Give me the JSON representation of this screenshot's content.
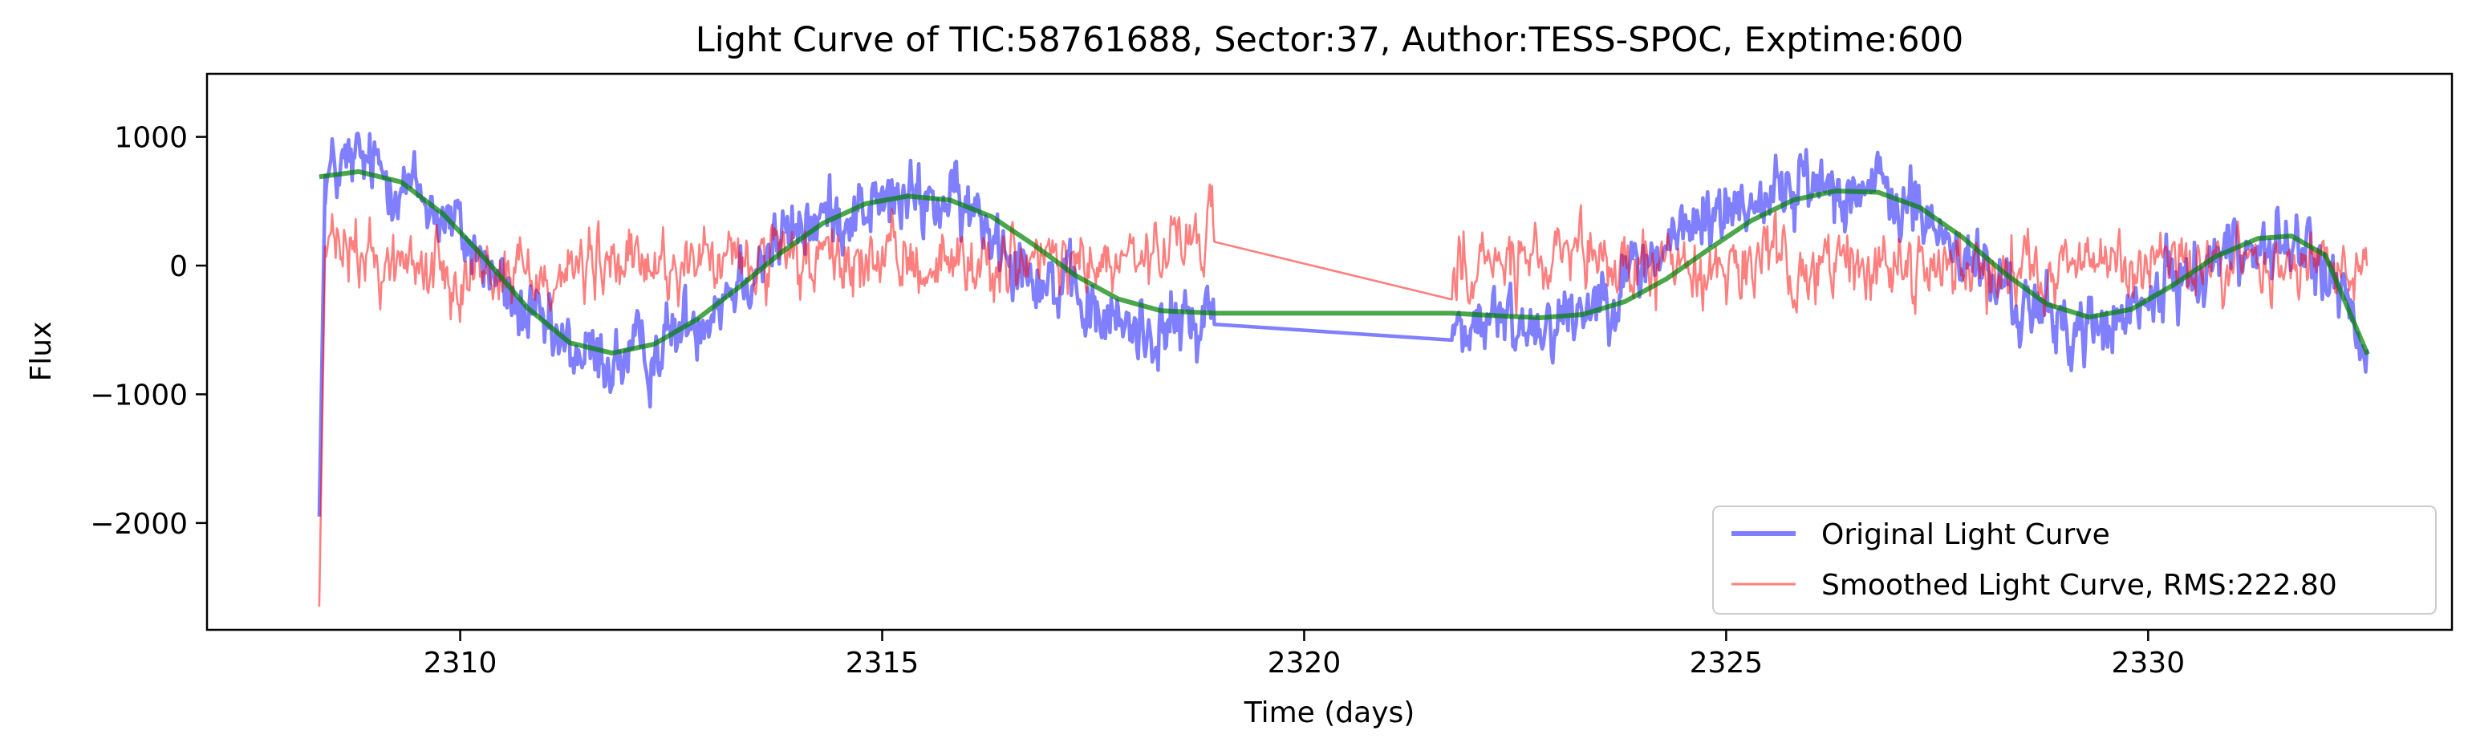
{
  "chart_data": {
    "type": "line",
    "title": "Light Curve of TIC:58761688, Sector:37, Author:TESS-SPOC, Exptime:600",
    "xlabel": "Time (days)",
    "ylabel": "Flux",
    "xlim": [
      2307.0,
      2333.6
    ],
    "ylim": [
      -2830,
      1490
    ],
    "xticks": [
      2310,
      2315,
      2320,
      2325,
      2330
    ],
    "yticks": [
      -2000,
      -1000,
      0,
      1000
    ],
    "ytick_labels": [
      "−2000",
      "−1000",
      "0",
      "1000"
    ],
    "grid": false,
    "legend_position": "lower-right",
    "gap": [
      2318.95,
      2321.75
    ],
    "series": [
      {
        "name": "Original Light Curve",
        "color": "#0000ff",
        "opacity": 0.5,
        "style": "thick",
        "noise_amplitude": 230,
        "points": [
          [
            2308.33,
            -1950
          ],
          [
            2308.4,
            700
          ],
          [
            2308.8,
            800
          ],
          [
            2309.2,
            700
          ],
          [
            2309.7,
            450
          ],
          [
            2310.2,
            100
          ],
          [
            2310.7,
            -350
          ],
          [
            2311.2,
            -650
          ],
          [
            2311.7,
            -750
          ],
          [
            2312.2,
            -700
          ],
          [
            2312.7,
            -450
          ],
          [
            2313.2,
            -150
          ],
          [
            2313.7,
            150
          ],
          [
            2314.2,
            350
          ],
          [
            2314.7,
            450
          ],
          [
            2315.2,
            500
          ],
          [
            2315.7,
            500
          ],
          [
            2316.2,
            350
          ],
          [
            2316.7,
            50
          ],
          [
            2317.2,
            -250
          ],
          [
            2317.7,
            -450
          ],
          [
            2318.2,
            -500
          ],
          [
            2318.7,
            -450
          ],
          [
            2318.95,
            -350
          ],
          [
            2321.75,
            -500
          ],
          [
            2322.2,
            -450
          ],
          [
            2322.7,
            -450
          ],
          [
            2323.2,
            -350
          ],
          [
            2323.7,
            -150
          ],
          [
            2324.2,
            100
          ],
          [
            2324.7,
            350
          ],
          [
            2325.2,
            500
          ],
          [
            2325.7,
            600
          ],
          [
            2326.2,
            650
          ],
          [
            2326.7,
            600
          ],
          [
            2327.2,
            450
          ],
          [
            2327.7,
            150
          ],
          [
            2328.2,
            -150
          ],
          [
            2328.7,
            -400
          ],
          [
            2329.2,
            -500
          ],
          [
            2329.7,
            -450
          ],
          [
            2330.2,
            -200
          ],
          [
            2330.7,
            50
          ],
          [
            2331.2,
            150
          ],
          [
            2331.7,
            150
          ],
          [
            2332.2,
            -100
          ],
          [
            2332.6,
            -800
          ]
        ]
      },
      {
        "name": "Smoothed Light Curve, RMS:222.80",
        "color": "#ff0000",
        "opacity": 0.5,
        "style": "thin",
        "noise_amplitude": 225,
        "points": [
          [
            2308.33,
            -2650
          ],
          [
            2308.4,
            150
          ],
          [
            2309.0,
            30
          ],
          [
            2310.0,
            -30
          ],
          [
            2311.0,
            -50
          ],
          [
            2312.0,
            0
          ],
          [
            2313.0,
            20
          ],
          [
            2314.0,
            0
          ],
          [
            2315.0,
            30
          ],
          [
            2316.0,
            20
          ],
          [
            2317.0,
            0
          ],
          [
            2318.0,
            0
          ],
          [
            2318.95,
            250
          ],
          [
            2321.75,
            0
          ],
          [
            2323.0,
            0
          ],
          [
            2324.0,
            0
          ],
          [
            2325.0,
            0
          ],
          [
            2326.0,
            0
          ],
          [
            2327.0,
            0
          ],
          [
            2328.0,
            0
          ],
          [
            2329.0,
            0
          ],
          [
            2330.0,
            0
          ],
          [
            2331.0,
            0
          ],
          [
            2332.6,
            0
          ]
        ]
      },
      {
        "name": "",
        "color": "#008000",
        "opacity": 0.7,
        "style": "fit",
        "noise_amplitude": 0,
        "points": [
          [
            2308.33,
            690
          ],
          [
            2308.8,
            730
          ],
          [
            2309.3,
            650
          ],
          [
            2309.8,
            400
          ],
          [
            2310.3,
            50
          ],
          [
            2310.8,
            -330
          ],
          [
            2311.3,
            -600
          ],
          [
            2311.8,
            -680
          ],
          [
            2312.3,
            -610
          ],
          [
            2312.8,
            -420
          ],
          [
            2313.3,
            -170
          ],
          [
            2313.8,
            100
          ],
          [
            2314.3,
            330
          ],
          [
            2314.8,
            480
          ],
          [
            2315.3,
            540
          ],
          [
            2315.8,
            510
          ],
          [
            2316.3,
            380
          ],
          [
            2316.8,
            160
          ],
          [
            2317.3,
            -80
          ],
          [
            2317.8,
            -260
          ],
          [
            2318.3,
            -350
          ],
          [
            2318.95,
            -370
          ],
          [
            2321.75,
            -370
          ],
          [
            2322.3,
            -390
          ],
          [
            2322.8,
            -405
          ],
          [
            2323.3,
            -380
          ],
          [
            2323.8,
            -280
          ],
          [
            2324.3,
            -100
          ],
          [
            2324.8,
            130
          ],
          [
            2325.3,
            350
          ],
          [
            2325.8,
            510
          ],
          [
            2326.3,
            580
          ],
          [
            2326.8,
            570
          ],
          [
            2327.3,
            450
          ],
          [
            2327.8,
            220
          ],
          [
            2328.3,
            -60
          ],
          [
            2328.8,
            -300
          ],
          [
            2329.3,
            -400
          ],
          [
            2329.8,
            -340
          ],
          [
            2330.3,
            -150
          ],
          [
            2330.8,
            70
          ],
          [
            2331.3,
            210
          ],
          [
            2331.7,
            230
          ],
          [
            2332.1,
            80
          ],
          [
            2332.6,
            -690
          ]
        ]
      }
    ]
  }
}
